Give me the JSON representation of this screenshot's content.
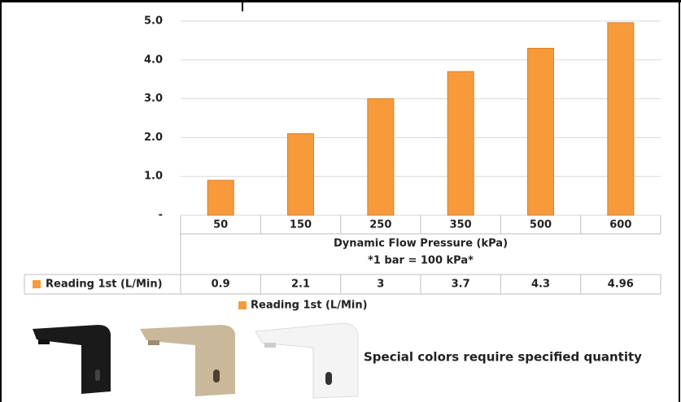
{
  "chart_data": {
    "type": "bar",
    "categories": [
      "50",
      "150",
      "250",
      "350",
      "500",
      "600"
    ],
    "x_label": "Dynamic Flow Pressure (kPa)",
    "x_sublabel": "*1 bar = 100 kPa*",
    "series": [
      {
        "name": "Reading 1st (L/Min)",
        "color": "#f79a3c",
        "values": [
          0.9,
          2.1,
          3,
          3.7,
          4.3,
          4.96
        ]
      }
    ],
    "ylim": [
      0,
      5
    ],
    "yticks": [
      {
        "value": 0,
        "label": "-"
      },
      {
        "value": 1,
        "label": "1.0"
      },
      {
        "value": 2,
        "label": "2.0"
      },
      {
        "value": 3,
        "label": "3.0"
      },
      {
        "value": 4,
        "label": "4.0"
      },
      {
        "value": 5,
        "label": "5.0"
      }
    ],
    "grid": true,
    "data_table": true,
    "legend": "bottom",
    "note": "Special colors require specified quantity"
  }
}
